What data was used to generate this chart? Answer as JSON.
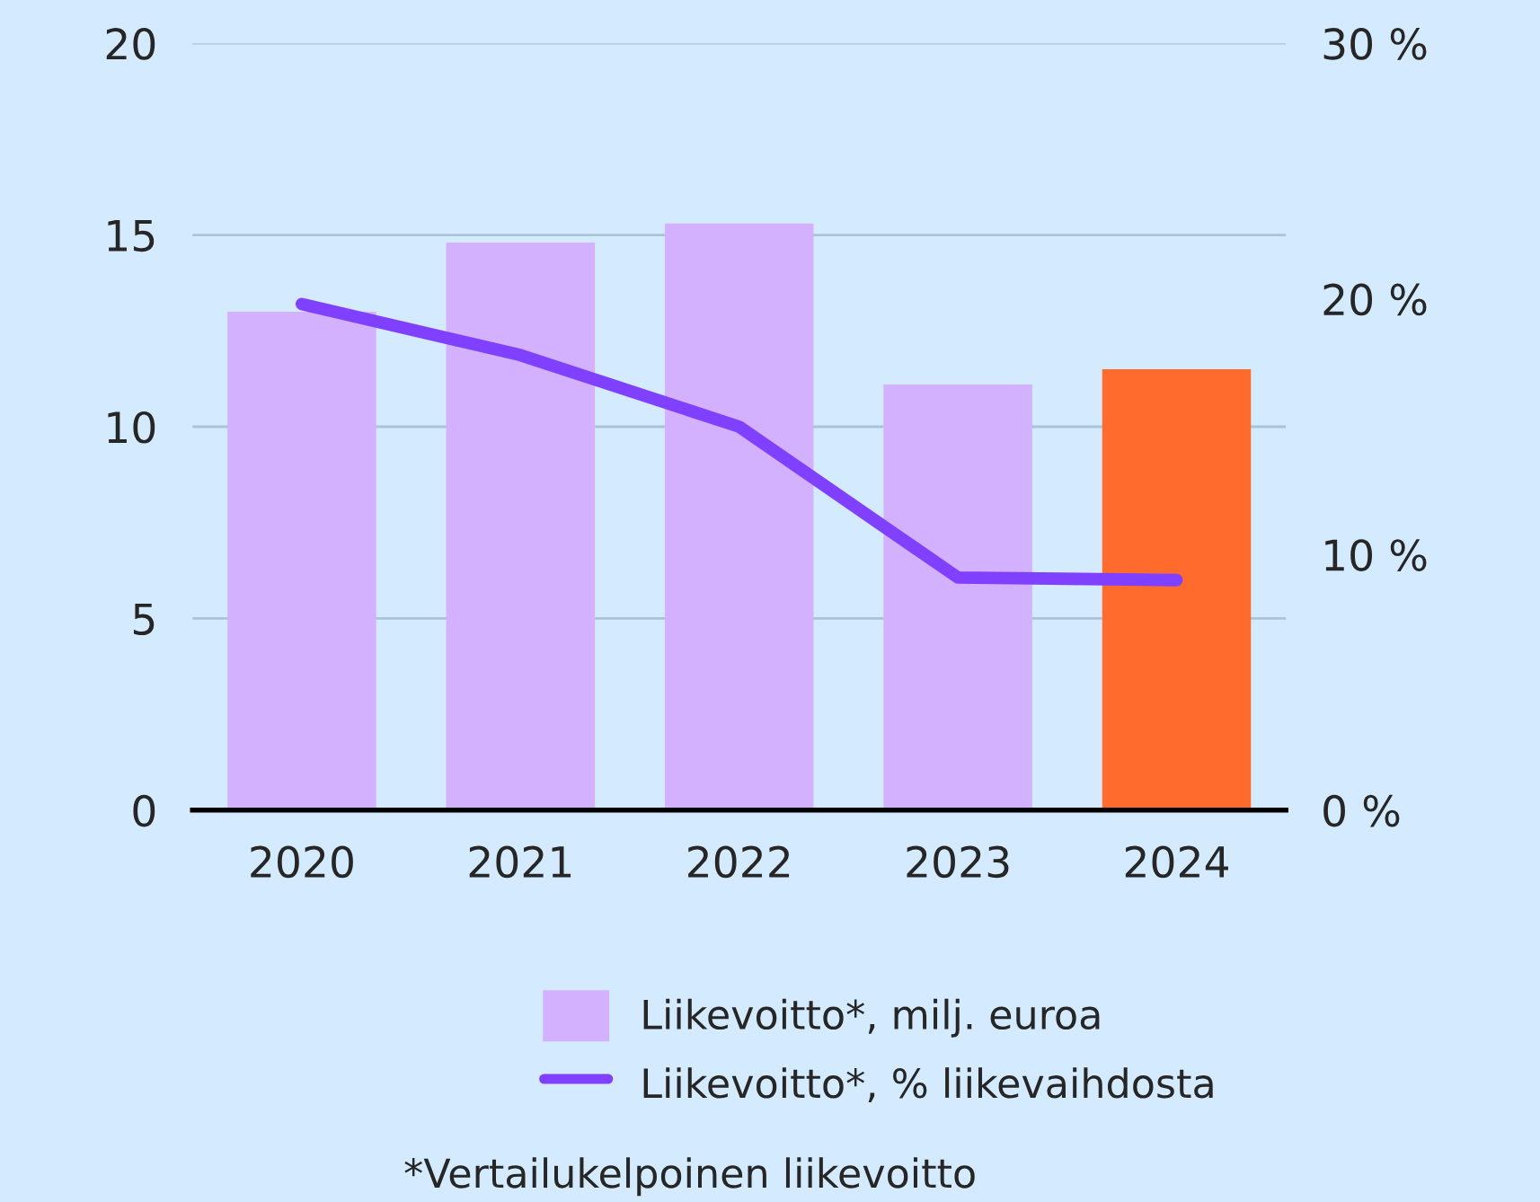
{
  "chart_data": {
    "type": "bar",
    "categories": [
      "2020",
      "2021",
      "2022",
      "2023",
      "2024"
    ],
    "series": [
      {
        "name": "Liikevoitto*, milj. euroa",
        "color": "#d3b1ff",
        "colors": [
          "#d3b1ff",
          "#d3b1ff",
          "#d3b1ff",
          "#d3b1ff",
          "#ff6b2c"
        ],
        "values": [
          13.0,
          14.8,
          15.3,
          11.1,
          11.5
        ]
      },
      {
        "name": "Liikevoitto*, % liikevaihdosta",
        "type": "line",
        "axis": "y2",
        "color": "#8040ff",
        "values": [
          19.8,
          17.8,
          15.0,
          9.1,
          9.0
        ]
      }
    ],
    "ylim": [
      0,
      20
    ],
    "yticks": [
      0,
      5,
      10,
      15,
      20
    ],
    "y2lim": [
      0,
      30
    ],
    "y2ticks": [
      {
        "value": 0,
        "label": "0 %"
      },
      {
        "value": 10,
        "label": "10 %"
      },
      {
        "value": 20,
        "label": "20 %"
      },
      {
        "value": 30,
        "label": "30 %"
      }
    ],
    "grid": "y",
    "legend": "bottom",
    "marker": "none",
    "line_style": "solid",
    "annotations": [
      "*Vertailukelpoinen liikevoitto"
    ]
  }
}
